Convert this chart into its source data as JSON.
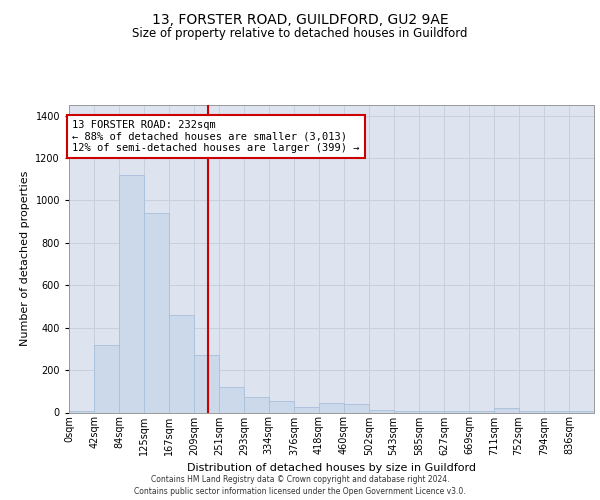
{
  "title1": "13, FORSTER ROAD, GUILDFORD, GU2 9AE",
  "title2": "Size of property relative to detached houses in Guildford",
  "xlabel": "Distribution of detached houses by size in Guildford",
  "ylabel": "Number of detached properties",
  "footer1": "Contains HM Land Registry data © Crown copyright and database right 2024.",
  "footer2": "Contains public sector information licensed under the Open Government Licence v3.0.",
  "bar_color": "#ccd9ea",
  "bar_edgecolor": "#a8c0da",
  "annotation_text_line1": "13 FORSTER ROAD: 232sqm",
  "annotation_text_line2": "← 88% of detached houses are smaller (3,013)",
  "annotation_text_line3": "12% of semi-detached houses are larger (399) →",
  "vline_color": "#cc0000",
  "vline_x": 232,
  "categories": [
    "0sqm",
    "42sqm",
    "84sqm",
    "125sqm",
    "167sqm",
    "209sqm",
    "251sqm",
    "293sqm",
    "334sqm",
    "376sqm",
    "418sqm",
    "460sqm",
    "502sqm",
    "543sqm",
    "585sqm",
    "627sqm",
    "669sqm",
    "711sqm",
    "752sqm",
    "794sqm",
    "836sqm"
  ],
  "bin_left": [
    0,
    42,
    84,
    125,
    167,
    209,
    251,
    293,
    334,
    376,
    418,
    460,
    502,
    543,
    585,
    627,
    669,
    711,
    752,
    794,
    836
  ],
  "bin_width": 41.9,
  "bar_heights": [
    5,
    320,
    1120,
    940,
    460,
    270,
    120,
    75,
    55,
    25,
    45,
    40,
    10,
    5,
    5,
    5,
    5,
    20,
    5,
    5,
    5
  ],
  "ylim": [
    0,
    1450
  ],
  "yticks": [
    0,
    200,
    400,
    600,
    800,
    1000,
    1200,
    1400
  ],
  "xlim_left": 0,
  "xlim_right": 878,
  "grid_color": "#c8d0de",
  "background_color": "#dde4f0",
  "tick_fontsize": 7,
  "ylabel_fontsize": 8,
  "xlabel_fontsize": 8
}
